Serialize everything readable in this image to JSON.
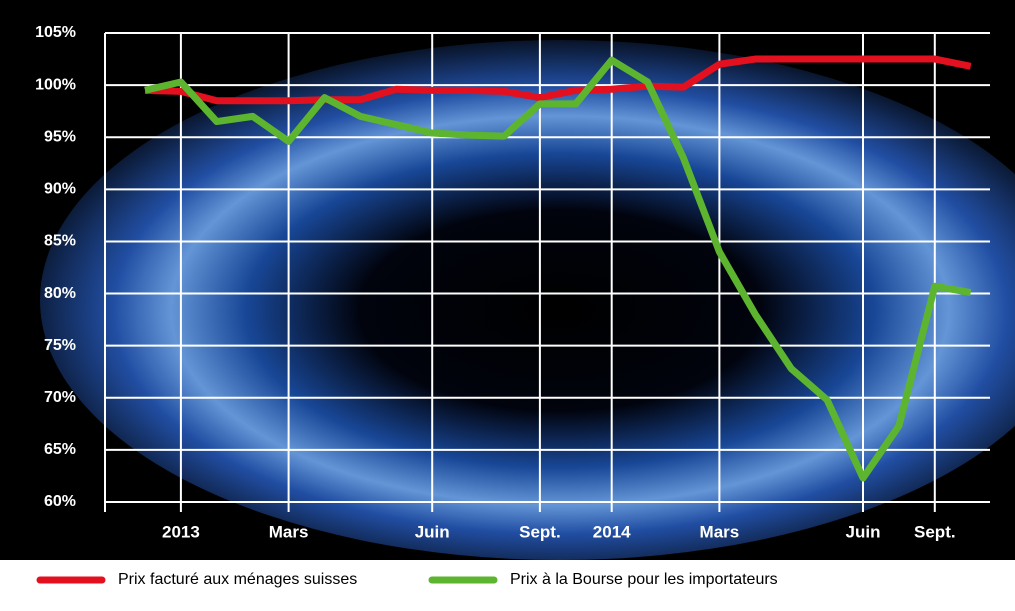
{
  "chart_data": {
    "type": "line",
    "categories": [
      null,
      "2013",
      null,
      null,
      "Mars",
      null,
      null,
      null,
      "Juin",
      null,
      null,
      "Sept.",
      null,
      "2014",
      null,
      null,
      "Mars",
      null,
      null,
      null,
      "Juin",
      null,
      "Sept.",
      null
    ],
    "series": [
      {
        "name": "Prix facturé aux ménages suisses",
        "color": "#e3101f",
        "values": [
          99.5,
          99.4,
          98.5,
          98.5,
          98.5,
          98.6,
          98.6,
          99.6,
          99.5,
          99.5,
          99.4,
          98.8,
          99.5,
          99.6,
          99.9,
          99.8,
          102,
          102.5,
          102.5,
          102.5,
          102.5,
          102.5,
          102.5,
          101.8
        ]
      },
      {
        "name": "Prix à la Bourse pour les importateurs",
        "color": "#5db52f",
        "values": [
          99.5,
          100.3,
          96.5,
          97,
          94.6,
          98.8,
          97,
          96.2,
          95.4,
          95.2,
          95.1,
          98.2,
          98.2,
          102.4,
          100.3,
          93,
          84,
          78,
          72.8,
          69.8,
          62.3,
          67.3,
          80.7,
          80.1
        ]
      }
    ],
    "ylim": [
      60,
      105
    ],
    "yticks": [
      {
        "value": 60,
        "label": "60%"
      },
      {
        "value": 65,
        "label": "65%"
      },
      {
        "value": 70,
        "label": "70%"
      },
      {
        "value": 75,
        "label": "75%"
      },
      {
        "value": 80,
        "label": "80%"
      },
      {
        "value": 85,
        "label": "85%"
      },
      {
        "value": 90,
        "label": "90%"
      },
      {
        "value": 95,
        "label": "95%"
      },
      {
        "value": 100,
        "label": "100%"
      },
      {
        "value": 105,
        "label": "105%"
      }
    ],
    "grid": true
  }
}
